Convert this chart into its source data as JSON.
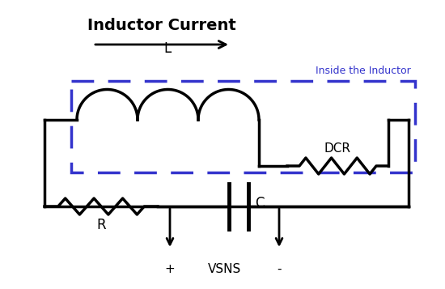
{
  "title": "Inductor Current",
  "inside_label": "Inside the Inductor",
  "label_L": "L",
  "label_R": "R",
  "label_C": "C",
  "label_DCR": "DCR",
  "label_VSNS": "VSNS",
  "label_plus": "+",
  "label_minus": "-",
  "dashed_box_color": "#3333cc",
  "wire_color": "#000000",
  "bg_color": "#ffffff"
}
